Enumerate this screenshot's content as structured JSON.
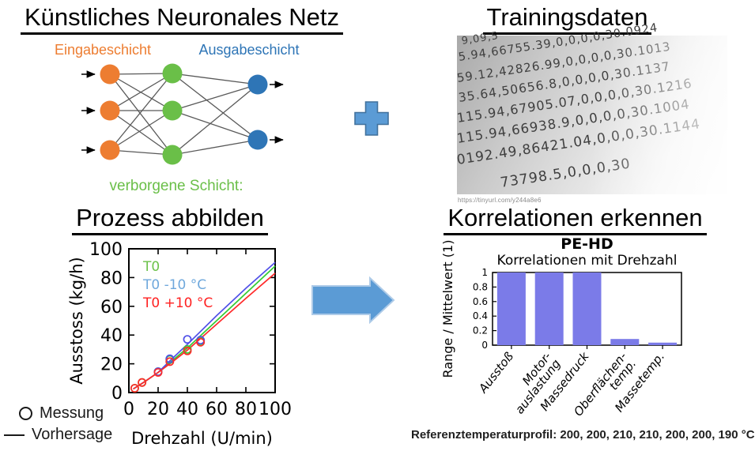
{
  "ann": {
    "title": "Künstliches Neuronales Netz",
    "input_label": "Eingabeschicht",
    "output_label": "Ausgabeschicht",
    "hidden_label": "verborgene Schicht:",
    "node_colors": {
      "input": "#ED7D31",
      "hidden": "#6ABF48",
      "output": "#2E75B6"
    },
    "edge_color": "#595959"
  },
  "training": {
    "title": "Trainingsdaten",
    "source_caption": "https://tinyurl.com/y244a8e6",
    "rows": [
      "9,09,5",
      "5.94,66755.39,0,0,0,0,30.0924",
      "59.12,42826.99,0,0,0,0,30.1013",
      "35.64,50656.8,0,0,0,0,30.1137",
      "115.94,67905.07,0,0,0,0,30.1216",
      "115.94,66938.9,0,0,0,0,30.1004",
      "0192.49,86421.04,0,0,0,30.1144",
      "73798.5,0,0,0,30"
    ]
  },
  "process": {
    "title": "Prozess abbilden"
  },
  "correlation": {
    "title": "Korrelationen erkennen",
    "caption": "Referenztemperaturprofil: 200, 200, 210, 210, 200, 200, 190 °C"
  },
  "operators": {
    "plus_fill": "#5B9BD5",
    "plus_stroke": "#41719C",
    "arrow_fill": "#5B9BD5",
    "arrow_stroke": "#AECBE8"
  },
  "chart_data": [
    {
      "type": "line",
      "title": "",
      "xlabel": "Drehzahl (U/min)",
      "ylabel": "Ausstoss (kg/h)",
      "xlim": [
        0,
        100
      ],
      "ylim": [
        0,
        100
      ],
      "xticks": [
        0,
        20,
        40,
        60,
        80,
        100
      ],
      "yticks": [
        0,
        20,
        40,
        60,
        80,
        100
      ],
      "grid": false,
      "legend_position": "top-left-inside",
      "series": [
        {
          "name": "T0",
          "color": "#33CC33",
          "label_color": "#6CC24A",
          "x": [
            3,
            10,
            20,
            30,
            40,
            60,
            80,
            100
          ],
          "y": [
            2.5,
            7,
            14,
            22.5,
            31,
            50,
            69,
            88
          ]
        },
        {
          "name": "T0 -10 °C",
          "color": "#5050E8",
          "label_color": "#6FA8DC",
          "x": [
            3,
            10,
            20,
            30,
            40,
            60,
            80,
            100
          ],
          "y": [
            2.5,
            7,
            14,
            24,
            33.5,
            53.5,
            72.5,
            90.5
          ]
        },
        {
          "name": "T0 +10 °C",
          "color": "#FF2A2A",
          "label_color": "#FF2020",
          "x": [
            3,
            10,
            20,
            30,
            40,
            60,
            80,
            100
          ],
          "y": [
            2.5,
            7,
            14,
            21.5,
            29.5,
            47.5,
            65.5,
            83
          ]
        }
      ],
      "measurements": [
        {
          "series": "T0",
          "color": "#33CC33",
          "points": [
            [
              4,
              3
            ],
            [
              9,
              7
            ],
            [
              20,
              14.5
            ],
            [
              28,
              23
            ],
            [
              40,
              30
            ],
            [
              49,
              36
            ]
          ]
        },
        {
          "series": "T0 -10 °C",
          "color": "#5050E8",
          "points": [
            [
              20,
              14.5
            ],
            [
              28,
              23.5
            ],
            [
              40,
              37
            ],
            [
              49,
              36.5
            ]
          ]
        },
        {
          "series": "T0 +10 °C",
          "color": "#FF2A2A",
          "points": [
            [
              4,
              3
            ],
            [
              9,
              7
            ],
            [
              20,
              14
            ],
            [
              28,
              21.5
            ],
            [
              40,
              29
            ],
            [
              49,
              35
            ]
          ]
        }
      ],
      "marker_legend": [
        {
          "glyph": "circle",
          "label": "Messung"
        },
        {
          "glyph": "line",
          "label": "Vorhersage"
        }
      ]
    },
    {
      "type": "bar",
      "title": "PE-HD",
      "subtitle": "Korrelationen mit Drehzahl",
      "ylabel": "Range / Mittelwert (1)",
      "ylim": [
        0,
        1
      ],
      "yticks": [
        0,
        0.2,
        0.4,
        0.6,
        0.8,
        1
      ],
      "categories": [
        [
          "Ausstoß"
        ],
        [
          "Motor-",
          "auslastung"
        ],
        [
          "Massedruck"
        ],
        [
          "Oberflächen-",
          "temp."
        ],
        [
          "Massetemp."
        ]
      ],
      "values": [
        1,
        1,
        1,
        0.085,
        0.035
      ],
      "bar_color": "#7B7BE8",
      "bar_edge": "#6A6AD8"
    }
  ]
}
